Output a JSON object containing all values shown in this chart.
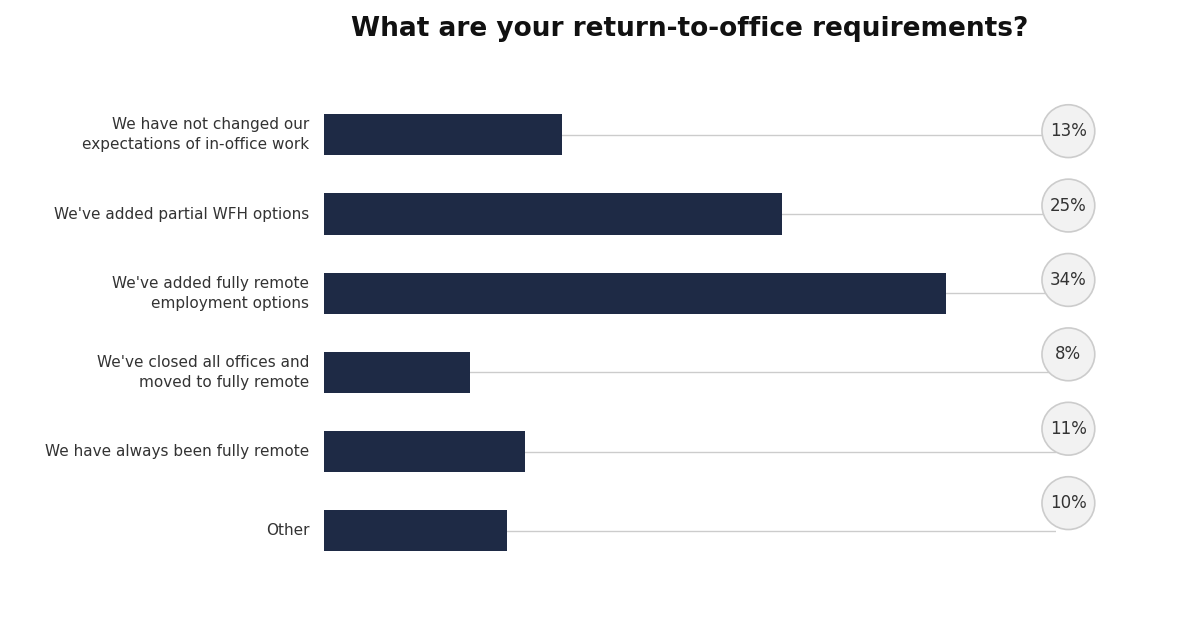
{
  "title": "What are your return-to-office requirements?",
  "title_fontsize": 19,
  "title_fontweight": "bold",
  "categories": [
    "We have not changed our\nexpectations of in-office work",
    "We've added partial WFH options",
    "We've added fully remote\nemployment options",
    "We've closed all offices and\nmoved to fully remote",
    "We have always been fully remote",
    "Other"
  ],
  "values": [
    13,
    25,
    34,
    8,
    11,
    10
  ],
  "labels": [
    "13%",
    "25%",
    "34%",
    "8%",
    "11%",
    "10%"
  ],
  "bar_color": "#1e2a45",
  "bar_height": 0.52,
  "background_color": "#ffffff",
  "label_circle_facecolor": "#f2f2f2",
  "label_circle_edgecolor": "#cccccc",
  "label_fontsize": 12,
  "category_fontsize": 11,
  "line_color": "#cccccc",
  "text_color": "#333333",
  "title_color": "#111111"
}
